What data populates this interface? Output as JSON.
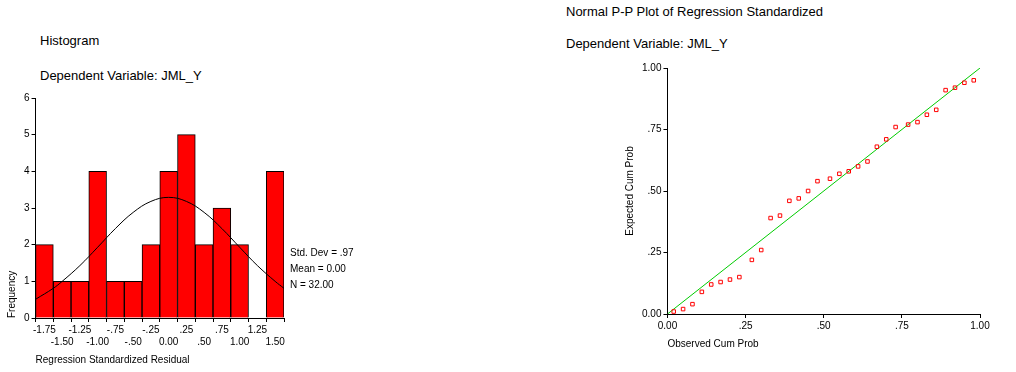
{
  "chart_data": [
    {
      "type": "histogram",
      "title": "Histogram",
      "subtitle": "Dependent Variable: JML_Y",
      "x_label": "Regression Standardized Residual",
      "y_label": "Frequency",
      "bins": [
        -1.875,
        -1.625,
        -1.375,
        -1.125,
        -0.875,
        -0.625,
        -0.375,
        -0.125,
        0.125,
        0.375,
        0.625,
        0.875,
        1.125,
        1.375,
        1.625
      ],
      "counts": [
        2,
        1,
        1,
        4,
        1,
        1,
        2,
        4,
        5,
        2,
        3,
        2,
        0,
        4
      ],
      "color": "#ff0000",
      "xlim": [
        -1.875,
        1.625
      ],
      "xticks": [
        -1.75,
        {
          "value": -1.5,
          "label": "-1.50"
        },
        -1.25,
        {
          "value": -1,
          "label": "-1.00"
        },
        {
          "value": -0.75,
          "label": "-.75"
        },
        {
          "value": -0.5,
          "label": "-.50"
        },
        {
          "value": -0.25,
          "label": "-.25"
        },
        {
          "value": 0,
          "label": "0.00"
        },
        {
          "value": 0.25,
          "label": ".25"
        },
        {
          "value": 0.5,
          "label": ".50"
        },
        {
          "value": 0.75,
          "label": ".75"
        },
        {
          "value": 1,
          "label": "1.00"
        },
        1.25,
        {
          "value": 1.5,
          "label": "1.50"
        }
      ],
      "ylim": [
        0,
        6
      ],
      "yticks": [
        0,
        1,
        2,
        3,
        4,
        5,
        6
      ],
      "grid": false,
      "curve": {
        "x": [
          -1.875,
          -1.625,
          -1.5,
          -1.25,
          -1.0,
          -0.75,
          -0.5,
          -0.25,
          0,
          0.25,
          0.5,
          0.75,
          1.0,
          1.25,
          1.5,
          1.625
        ],
        "values": [
          0.51,
          0.81,
          1.0,
          1.43,
          1.93,
          2.44,
          2.88,
          3.18,
          3.29,
          3.18,
          2.88,
          2.44,
          1.93,
          1.43,
          1.0,
          0.81
        ],
        "color": "#000000"
      },
      "annotations": [
        "Std. Dev = .97",
        "Mean = 0.00",
        "N = 32.00"
      ]
    },
    {
      "type": "scatter",
      "title": "Normal P-P Plot of Regression Standardized",
      "subtitle": "Dependent Variable: JML_Y",
      "x_label": "Observed Cum Prob",
      "y_label": "Expected Cum Prob",
      "x": [
        0.02,
        0.05,
        0.08,
        0.11,
        0.14,
        0.17,
        0.2,
        0.23,
        0.27,
        0.3,
        0.33,
        0.36,
        0.39,
        0.42,
        0.45,
        0.48,
        0.52,
        0.55,
        0.58,
        0.61,
        0.64,
        0.67,
        0.7,
        0.73,
        0.77,
        0.8,
        0.83,
        0.86,
        0.89,
        0.92,
        0.95,
        0.98
      ],
      "values": [
        0.01,
        0.02,
        0.04,
        0.09,
        0.12,
        0.13,
        0.14,
        0.15,
        0.22,
        0.26,
        0.39,
        0.4,
        0.46,
        0.47,
        0.5,
        0.54,
        0.55,
        0.57,
        0.58,
        0.6,
        0.62,
        0.68,
        0.71,
        0.76,
        0.77,
        0.78,
        0.81,
        0.83,
        0.91,
        0.92,
        0.94,
        0.95
      ],
      "color": "#ff0000",
      "marker": "square",
      "xlim": [
        0,
        1
      ],
      "ylim": [
        0,
        1
      ],
      "xticks": [
        {
          "value": 0,
          "label": "0.00"
        },
        {
          "value": 0.25,
          "label": ".25"
        },
        {
          "value": 0.5,
          "label": ".50"
        },
        {
          "value": 0.75,
          "label": ".75"
        },
        {
          "value": 1,
          "label": "1.00"
        }
      ],
      "yticks": [
        {
          "value": 0,
          "label": "0.00"
        },
        {
          "value": 0.25,
          "label": ".25"
        },
        {
          "value": 0.5,
          "label": ".50"
        },
        {
          "value": 0.75,
          "label": ".75"
        },
        {
          "value": 1,
          "label": "1.00"
        }
      ],
      "grid": false,
      "reference_line": {
        "x": [
          0,
          1
        ],
        "values": [
          0,
          1
        ],
        "color": "#00cc00"
      }
    }
  ]
}
